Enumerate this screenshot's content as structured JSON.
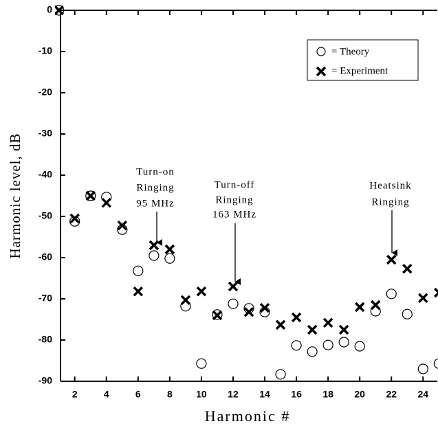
{
  "chart_data": {
    "type": "scatter",
    "x_label": "Harmonic #",
    "y_label": "Harmonic level, dB",
    "x": [
      1,
      2,
      3,
      4,
      5,
      6,
      7,
      8,
      9,
      10,
      11,
      12,
      13,
      14,
      15,
      16,
      17,
      18,
      19,
      20,
      21,
      22,
      23,
      24,
      25
    ],
    "series": [
      {
        "name": "= Theory",
        "marker": "circle",
        "color": "#000000",
        "values": [
          0,
          -51.2,
          -45,
          -45.3,
          -53.2,
          -63.2,
          -59.5,
          -60.2,
          -71.8,
          -85.7,
          -73.8,
          -71.2,
          -72.3,
          -73.2,
          -88.3,
          -81.3,
          -82.8,
          -81.2,
          -80.5,
          -81.5,
          -73,
          -68.8,
          -73.7,
          -87,
          -85.7
        ]
      },
      {
        "name": "= Experiment",
        "marker": "x",
        "color": "#000000",
        "values": [
          0,
          -50.5,
          -45,
          -46.7,
          -52.2,
          -68.2,
          -57,
          -58,
          -70.3,
          -68.2,
          -74,
          -67,
          -73.2,
          -72.2,
          -76.3,
          -74.5,
          -77.5,
          -75.8,
          -77.5,
          -72,
          -71.5,
          -60.5,
          -62.7,
          -69.8,
          -68.5
        ]
      }
    ],
    "xlim": [
      1.1,
      24.9
    ],
    "xticks": [
      2,
      4,
      6,
      8,
      10,
      12,
      14,
      16,
      18,
      20,
      22,
      24
    ],
    "ylim": [
      -90,
      0
    ],
    "yticks": [
      0,
      -10,
      -20,
      -30,
      -40,
      -50,
      -60,
      -70,
      -80,
      -90
    ],
    "annotations": [
      {
        "lines": [
          "Turn-on",
          "Ringing",
          "95 MHz"
        ]
      },
      {
        "lines": [
          "Turn-off",
          "Ringing",
          "163 MHz"
        ]
      },
      {
        "lines": [
          "Heatsink",
          "Ringing"
        ]
      }
    ]
  }
}
